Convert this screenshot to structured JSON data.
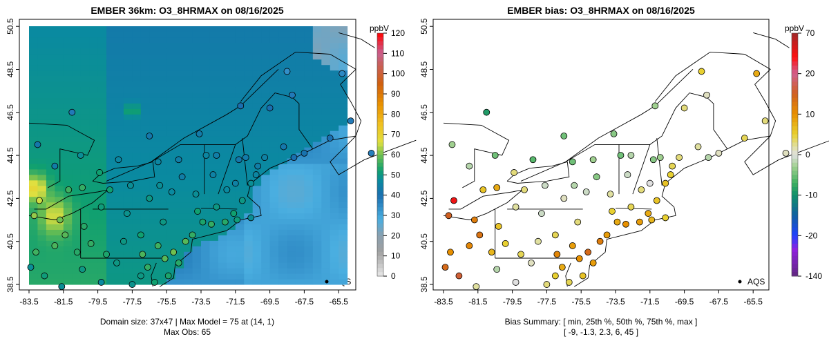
{
  "chart_data": [
    {
      "type": "heatmap",
      "title": "EMBER 36km: O3_8HRMAX on 08/16/2025",
      "xticks": [
        "-83.5",
        "-81.5",
        "-79.5",
        "-77.5",
        "-75.5",
        "-73.5",
        "-71.5",
        "-69.5",
        "-67.5",
        "-65.5"
      ],
      "yticks": [
        "38.5",
        "40.5",
        "42.5",
        "44.5",
        "46.5",
        "48.5",
        "50.5"
      ],
      "xlim": [
        -84.1,
        -64.5
      ],
      "ylim": [
        38.2,
        50.8
      ],
      "colorbar": {
        "unit": "ppbV",
        "ticks": [
          "0",
          "10",
          "20",
          "30",
          "40",
          "50",
          "60",
          "70",
          "80",
          "90",
          "100",
          "110",
          "120"
        ],
        "range": [
          0,
          120
        ]
      },
      "legend": {
        "label": "AQS",
        "position": "bottom-right"
      },
      "footer": [
        "Domain size: 37x47 | Max Model = 75 at (14, 1)",
        "Max Obs: 65"
      ],
      "domain_size": [
        37,
        47
      ],
      "max_model": 75,
      "max_obs": 65
    },
    {
      "type": "scatter",
      "title": "EMBER bias: O3_8HRMAX on 08/16/2025",
      "xticks": [
        "-83.5",
        "-81.5",
        "-79.5",
        "-77.5",
        "-75.5",
        "-73.5",
        "-71.5",
        "-69.5",
        "-67.5",
        "-65.5"
      ],
      "yticks": [
        "38.5",
        "40.5",
        "42.5",
        "44.5",
        "46.5",
        "48.5",
        "50.5"
      ],
      "xlim": [
        -84.1,
        -64.5
      ],
      "ylim": [
        38.2,
        50.8
      ],
      "colorbar": {
        "unit": "ppbV",
        "ticks": [
          "70",
          "20",
          "10",
          "0",
          "-10",
          "-20",
          "-140"
        ]
      },
      "legend": {
        "label": "AQS",
        "position": "bottom-right"
      },
      "footer": [
        "Bias Summary: [ min, 25th %, 50th %, 75th %, max ]",
        "[ -9,   -1.3,   2.3,   6,   45 ]"
      ],
      "bias_summary": {
        "min": -9,
        "p25": -1.3,
        "p50": 2.3,
        "p75": 6,
        "max": 45
      }
    }
  ],
  "stations": [
    [
      -68.2,
      47.3,
      38,
      1
    ],
    [
      -69.5,
      46.7,
      40,
      3
    ],
    [
      -68.7,
      44.9,
      42,
      2
    ],
    [
      -68.1,
      44.4,
      40,
      -2
    ],
    [
      -67.5,
      44.6,
      41,
      1
    ],
    [
      -70.2,
      44.0,
      44,
      4
    ],
    [
      -69.8,
      44.4,
      45,
      3
    ],
    [
      -70.6,
      43.2,
      48,
      6
    ],
    [
      -70.9,
      44.4,
      43,
      -3
    ],
    [
      -70.3,
      43.6,
      46,
      5
    ],
    [
      -71.3,
      44.3,
      42,
      -4
    ],
    [
      -71.5,
      43.2,
      45,
      0
    ],
    [
      -72.6,
      44.5,
      44,
      -2
    ],
    [
      -73.2,
      44.5,
      46,
      -5
    ],
    [
      -72.0,
      42.9,
      47,
      3
    ],
    [
      -72.8,
      43.6,
      45,
      -1
    ],
    [
      -71.1,
      42.4,
      50,
      6
    ],
    [
      -71.6,
      41.8,
      52,
      8
    ],
    [
      -72.6,
      42.1,
      50,
      4
    ],
    [
      -72.9,
      41.3,
      55,
      10
    ],
    [
      -73.4,
      41.4,
      53,
      8
    ],
    [
      -71.4,
      41.5,
      51,
      7
    ],
    [
      -70.6,
      41.6,
      48,
      5
    ],
    [
      -72.1,
      41.4,
      54,
      9
    ],
    [
      -74.0,
      40.8,
      55,
      9
    ],
    [
      -73.8,
      42.7,
      48,
      2
    ],
    [
      -74.8,
      44.3,
      44,
      -3
    ],
    [
      -75.9,
      43.1,
      48,
      -2
    ],
    [
      -76.5,
      42.5,
      50,
      1
    ],
    [
      -77.6,
      43.1,
      48,
      -1
    ],
    [
      -78.8,
      42.9,
      52,
      3
    ],
    [
      -79.3,
      42.1,
      51,
      2
    ],
    [
      -76.0,
      44.2,
      46,
      -5
    ],
    [
      -73.7,
      41.9,
      52,
      5
    ],
    [
      -75.2,
      42.8,
      47,
      -1
    ],
    [
      -74.6,
      43.5,
      44,
      -4
    ],
    [
      -74.4,
      40.5,
      58,
      12
    ],
    [
      -74.8,
      39.5,
      54,
      9
    ],
    [
      -75.1,
      40.0,
      60,
      14
    ],
    [
      -75.6,
      39.7,
      58,
      10
    ],
    [
      -76.6,
      39.3,
      55,
      8
    ],
    [
      -77.0,
      38.9,
      50,
      5
    ],
    [
      -76.0,
      40.3,
      56,
      9
    ],
    [
      -77.0,
      40.8,
      52,
      4
    ],
    [
      -78.0,
      40.5,
      50,
      2
    ],
    [
      -79.9,
      40.4,
      55,
      5
    ],
    [
      -80.3,
      41.2,
      54,
      6
    ],
    [
      -77.8,
      41.8,
      49,
      -1
    ],
    [
      -75.7,
      41.4,
      50,
      3
    ],
    [
      -76.9,
      39.9,
      57,
      11
    ],
    [
      -75.4,
      38.9,
      53,
      6
    ],
    [
      -76.2,
      38.6,
      52,
      4
    ],
    [
      -78.4,
      39.5,
      50,
      1
    ],
    [
      -79.0,
      39.9,
      53,
      4
    ],
    [
      -81.7,
      41.5,
      60,
      12
    ],
    [
      -83.2,
      41.7,
      62,
      15
    ],
    [
      -82.9,
      42.4,
      65,
      45
    ],
    [
      -83.1,
      40.0,
      56,
      10
    ],
    [
      -82.0,
      40.3,
      57,
      11
    ],
    [
      -81.4,
      40.8,
      58,
      13
    ],
    [
      -80.7,
      40.0,
      54,
      7
    ],
    [
      -81.6,
      38.4,
      48,
      2
    ],
    [
      -80.4,
      39.2,
      50,
      -2
    ],
    [
      -82.6,
      38.9,
      51,
      16
    ],
    [
      -83.4,
      39.3,
      48,
      14
    ],
    [
      -80.4,
      43.0,
      55,
      8
    ],
    [
      -81.2,
      42.9,
      56,
      6
    ],
    [
      -79.4,
      43.7,
      52,
      3
    ],
    [
      -80.5,
      44.5,
      48,
      -5
    ],
    [
      -78.3,
      44.3,
      46,
      -6
    ],
    [
      -81.0,
      46.5,
      38,
      -9
    ],
    [
      -83.0,
      45.0,
      42,
      -3
    ],
    [
      -82.0,
      44.0,
      44,
      -2
    ],
    [
      -76.5,
      45.4,
      42,
      -5
    ],
    [
      -73.6,
      45.5,
      43,
      -4
    ],
    [
      -71.2,
      46.8,
      40,
      -3
    ],
    [
      -79.3,
      38.6,
      47,
      0
    ],
    [
      -77.5,
      38.5,
      49,
      3
    ],
    [
      -66.0,
      45.3,
      40,
      4
    ],
    [
      -64.8,
      46.1,
      38,
      3
    ],
    [
      -63.6,
      44.6,
      37,
      1
    ],
    [
      -65.3,
      48.3,
      35,
      8
    ],
    [
      -68.5,
      48.4,
      34,
      5
    ]
  ],
  "colors": {
    "frame": "#000000",
    "coast": "#000000"
  }
}
